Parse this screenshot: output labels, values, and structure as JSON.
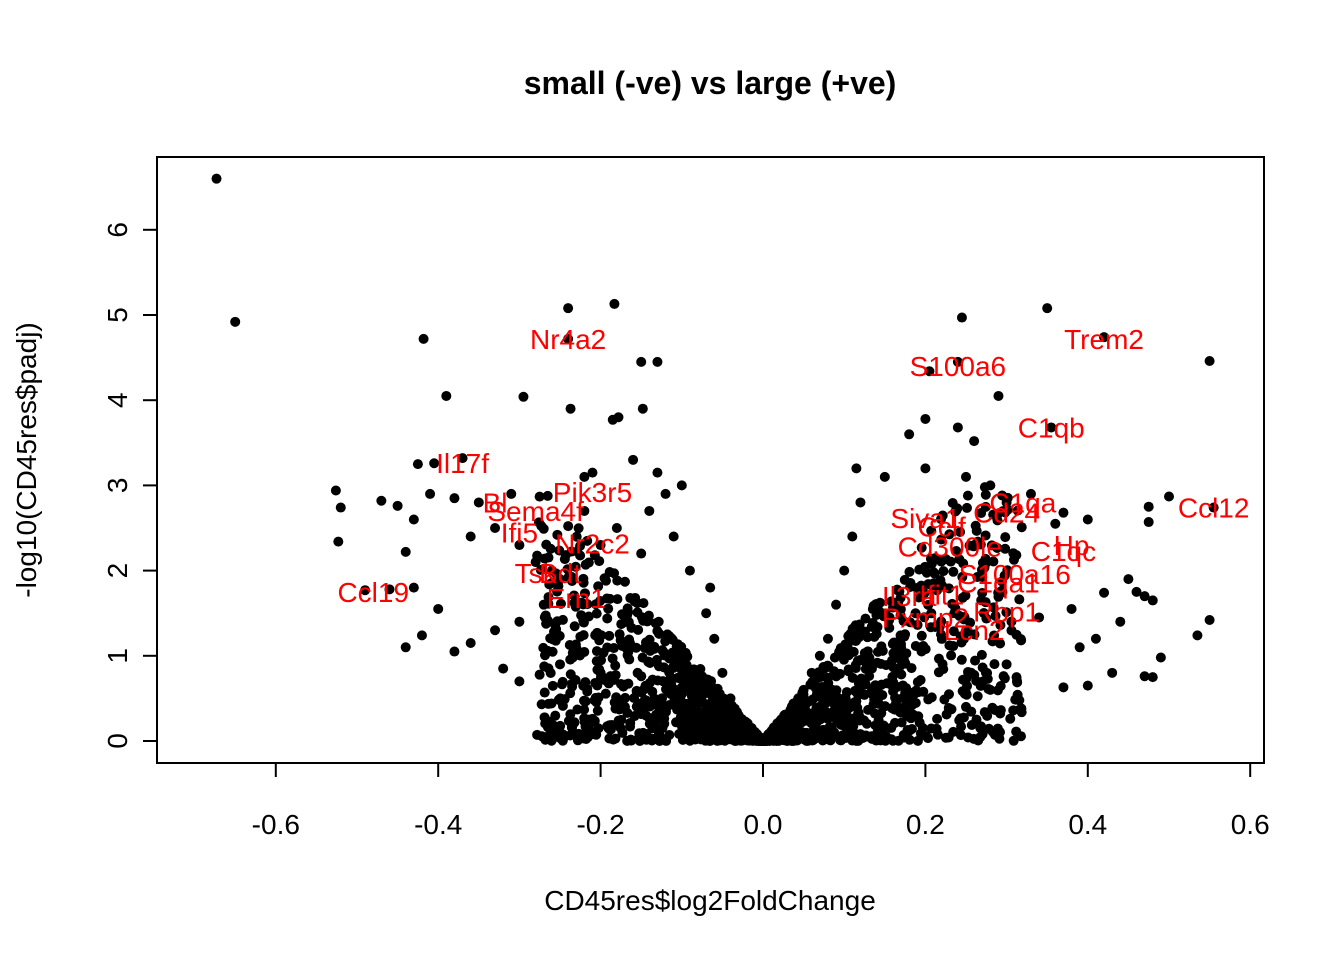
{
  "chart_data": {
    "type": "scatter",
    "title": "small (-ve) vs large (+ve)",
    "xlabel": "CD45res$log2FoldChange",
    "ylabel": "-log10(CD45res$padj)",
    "xlim": [
      -0.75,
      0.6
    ],
    "ylim": [
      0,
      6.6
    ],
    "x_ticks": [
      "-0.6",
      "-0.4",
      "-0.2",
      "0.0",
      "0.2",
      "0.4",
      "0.6"
    ],
    "x_tick_values": [
      -0.6,
      -0.4,
      -0.2,
      0.0,
      0.2,
      0.4,
      0.6
    ],
    "y_ticks": [
      "0",
      "1",
      "2",
      "3",
      "4",
      "5",
      "6"
    ],
    "y_tick_values": [
      0,
      1,
      2,
      3,
      4,
      5,
      6
    ],
    "point_color": "#000000",
    "label_color": "#ff0000",
    "points": [
      {
        "x": -0.673,
        "y": 6.6
      },
      {
        "x": -0.65,
        "y": 4.92
      },
      {
        "x": -0.418,
        "y": 4.72
      },
      {
        "x": -0.39,
        "y": 4.05
      },
      {
        "x": -0.295,
        "y": 4.04
      },
      {
        "x": -0.24,
        "y": 5.08
      },
      {
        "x": -0.183,
        "y": 5.13
      },
      {
        "x": -0.237,
        "y": 3.9
      },
      {
        "x": -0.15,
        "y": 4.45
      },
      {
        "x": -0.13,
        "y": 4.45
      },
      {
        "x": -0.148,
        "y": 3.9
      },
      {
        "x": -0.178,
        "y": 3.8
      },
      {
        "x": -0.185,
        "y": 3.77
      },
      {
        "x": -0.24,
        "y": 4.72
      },
      {
        "x": -0.425,
        "y": 3.25
      },
      {
        "x": -0.405,
        "y": 3.26
      },
      {
        "x": -0.37,
        "y": 3.32
      },
      {
        "x": -0.526,
        "y": 2.94
      },
      {
        "x": -0.52,
        "y": 2.74
      },
      {
        "x": -0.523,
        "y": 2.34
      },
      {
        "x": -0.47,
        "y": 2.82
      },
      {
        "x": -0.45,
        "y": 2.76
      },
      {
        "x": -0.43,
        "y": 2.6
      },
      {
        "x": -0.41,
        "y": 2.9
      },
      {
        "x": -0.44,
        "y": 2.22
      },
      {
        "x": -0.46,
        "y": 1.78
      },
      {
        "x": -0.49,
        "y": 1.77
      },
      {
        "x": -0.43,
        "y": 1.8
      },
      {
        "x": -0.4,
        "y": 1.55
      },
      {
        "x": -0.42,
        "y": 1.24
      },
      {
        "x": -0.44,
        "y": 1.1
      },
      {
        "x": -0.38,
        "y": 2.85
      },
      {
        "x": -0.36,
        "y": 2.4
      },
      {
        "x": -0.35,
        "y": 2.8
      },
      {
        "x": -0.33,
        "y": 2.5
      },
      {
        "x": -0.31,
        "y": 2.9
      },
      {
        "x": -0.3,
        "y": 2.3
      },
      {
        "x": -0.28,
        "y": 2.1
      },
      {
        "x": -0.26,
        "y": 2.0
      },
      {
        "x": -0.22,
        "y": 3.1
      },
      {
        "x": -0.21,
        "y": 3.15
      },
      {
        "x": -0.16,
        "y": 3.3
      },
      {
        "x": -0.13,
        "y": 3.15
      },
      {
        "x": -0.1,
        "y": 3.0
      },
      {
        "x": -0.12,
        "y": 2.9
      },
      {
        "x": -0.14,
        "y": 2.7
      },
      {
        "x": -0.11,
        "y": 2.4
      },
      {
        "x": -0.09,
        "y": 2.0
      },
      {
        "x": -0.15,
        "y": 2.2
      },
      {
        "x": -0.18,
        "y": 2.5
      },
      {
        "x": -0.2,
        "y": 2.3
      },
      {
        "x": -0.22,
        "y": 2.7
      },
      {
        "x": -0.25,
        "y": 1.9
      },
      {
        "x": -0.27,
        "y": 1.6
      },
      {
        "x": -0.3,
        "y": 1.4
      },
      {
        "x": -0.33,
        "y": 1.3
      },
      {
        "x": -0.36,
        "y": 1.15
      },
      {
        "x": -0.38,
        "y": 1.05
      },
      {
        "x": -0.3,
        "y": 0.7
      },
      {
        "x": -0.25,
        "y": 0.9
      },
      {
        "x": -0.2,
        "y": 0.8
      },
      {
        "x": -0.32,
        "y": 0.85
      },
      {
        "x": -0.065,
        "y": 1.8
      },
      {
        "x": -0.07,
        "y": 1.5
      },
      {
        "x": -0.06,
        "y": 1.2
      },
      {
        "x": -0.05,
        "y": 0.8
      },
      {
        "x": -0.04,
        "y": 0.5
      },
      {
        "x": -0.03,
        "y": 0.3
      },
      {
        "x": -0.02,
        "y": 0.15
      },
      {
        "x": 0.245,
        "y": 4.97
      },
      {
        "x": 0.35,
        "y": 5.08
      },
      {
        "x": 0.42,
        "y": 4.74
      },
      {
        "x": 0.55,
        "y": 4.46
      },
      {
        "x": 0.205,
        "y": 4.34
      },
      {
        "x": 0.24,
        "y": 4.45
      },
      {
        "x": 0.29,
        "y": 4.05
      },
      {
        "x": 0.355,
        "y": 3.68
      },
      {
        "x": 0.2,
        "y": 3.78
      },
      {
        "x": 0.18,
        "y": 3.6
      },
      {
        "x": 0.24,
        "y": 3.68
      },
      {
        "x": 0.26,
        "y": 3.52
      },
      {
        "x": 0.5,
        "y": 2.87
      },
      {
        "x": 0.475,
        "y": 2.75
      },
      {
        "x": 0.475,
        "y": 2.57
      },
      {
        "x": 0.555,
        "y": 2.74
      },
      {
        "x": 0.4,
        "y": 2.6
      },
      {
        "x": 0.37,
        "y": 2.68
      },
      {
        "x": 0.36,
        "y": 2.55
      },
      {
        "x": 0.33,
        "y": 2.9
      },
      {
        "x": 0.3,
        "y": 2.8
      },
      {
        "x": 0.28,
        "y": 3.0
      },
      {
        "x": 0.25,
        "y": 3.1
      },
      {
        "x": 0.2,
        "y": 3.2
      },
      {
        "x": 0.15,
        "y": 3.1
      },
      {
        "x": 0.115,
        "y": 3.2
      },
      {
        "x": 0.12,
        "y": 2.8
      },
      {
        "x": 0.11,
        "y": 2.4
      },
      {
        "x": 0.1,
        "y": 2.0
      },
      {
        "x": 0.09,
        "y": 1.6
      },
      {
        "x": 0.08,
        "y": 1.2
      },
      {
        "x": 0.07,
        "y": 1.0
      },
      {
        "x": 0.45,
        "y": 1.9
      },
      {
        "x": 0.44,
        "y": 1.4
      },
      {
        "x": 0.47,
        "y": 1.7
      },
      {
        "x": 0.48,
        "y": 1.65
      },
      {
        "x": 0.46,
        "y": 1.75
      },
      {
        "x": 0.42,
        "y": 1.74
      },
      {
        "x": 0.38,
        "y": 1.55
      },
      {
        "x": 0.34,
        "y": 1.45
      },
      {
        "x": 0.55,
        "y": 1.42
      },
      {
        "x": 0.535,
        "y": 1.24
      },
      {
        "x": 0.49,
        "y": 0.98
      },
      {
        "x": 0.47,
        "y": 0.76
      },
      {
        "x": 0.48,
        "y": 0.75
      },
      {
        "x": 0.43,
        "y": 0.8
      },
      {
        "x": 0.4,
        "y": 0.65
      },
      {
        "x": 0.37,
        "y": 0.63
      },
      {
        "x": 0.41,
        "y": 1.2
      },
      {
        "x": 0.39,
        "y": 1.1
      },
      {
        "x": 0.3,
        "y": 0.9
      },
      {
        "x": 0.28,
        "y": 0.6
      },
      {
        "x": 0.25,
        "y": 0.4
      },
      {
        "x": 0.06,
        "y": 0.8
      },
      {
        "x": 0.05,
        "y": 0.6
      },
      {
        "x": 0.04,
        "y": 0.4
      },
      {
        "x": 0.03,
        "y": 0.25
      },
      {
        "x": 0.02,
        "y": 0.12
      },
      {
        "x": 0.0,
        "y": 0.02
      }
    ],
    "labels": [
      {
        "text": "Nr4a2",
        "x": -0.24,
        "y": 4.72
      },
      {
        "text": "Il17f",
        "x": -0.37,
        "y": 3.26
      },
      {
        "text": "Pik3r5",
        "x": -0.21,
        "y": 2.92
      },
      {
        "text": "Bl",
        "x": -0.33,
        "y": 2.8
      },
      {
        "text": "Sema4f",
        "x": -0.28,
        "y": 2.7
      },
      {
        "text": "Ifi5",
        "x": -0.3,
        "y": 2.45
      },
      {
        "text": "Nr2c2",
        "x": -0.21,
        "y": 2.32
      },
      {
        "text": "Tsk",
        "x": -0.28,
        "y": 1.97
      },
      {
        "text": "Bdt",
        "x": -0.25,
        "y": 1.97
      },
      {
        "text": "Ern1",
        "x": -0.23,
        "y": 1.68
      },
      {
        "text": "Ccl19",
        "x": -0.48,
        "y": 1.75
      },
      {
        "text": "Trem2",
        "x": 0.42,
        "y": 4.72
      },
      {
        "text": "S100a6",
        "x": 0.24,
        "y": 4.4
      },
      {
        "text": "C1qb",
        "x": 0.355,
        "y": 3.68
      },
      {
        "text": "C1qa",
        "x": 0.32,
        "y": 2.8
      },
      {
        "text": "Cd24",
        "x": 0.3,
        "y": 2.68
      },
      {
        "text": "Siva1",
        "x": 0.2,
        "y": 2.62
      },
      {
        "text": "Cclf",
        "x": 0.22,
        "y": 2.52
      },
      {
        "text": "Cd300le",
        "x": 0.23,
        "y": 2.28
      },
      {
        "text": "Hp",
        "x": 0.38,
        "y": 2.3
      },
      {
        "text": "C1qc",
        "x": 0.37,
        "y": 2.23
      },
      {
        "text": "S100a16",
        "x": 0.31,
        "y": 1.96
      },
      {
        "text": "C1qa1",
        "x": 0.29,
        "y": 1.86
      },
      {
        "text": "Il3ra",
        "x": 0.18,
        "y": 1.7
      },
      {
        "text": "Ifit1",
        "x": 0.22,
        "y": 1.72
      },
      {
        "text": "Rbp1",
        "x": 0.3,
        "y": 1.52
      },
      {
        "text": "Pxmp2",
        "x": 0.2,
        "y": 1.45
      },
      {
        "text": "Lcn2",
        "x": 0.26,
        "y": 1.3
      },
      {
        "text": "Ccl12",
        "x": 0.555,
        "y": 2.74
      }
    ]
  }
}
